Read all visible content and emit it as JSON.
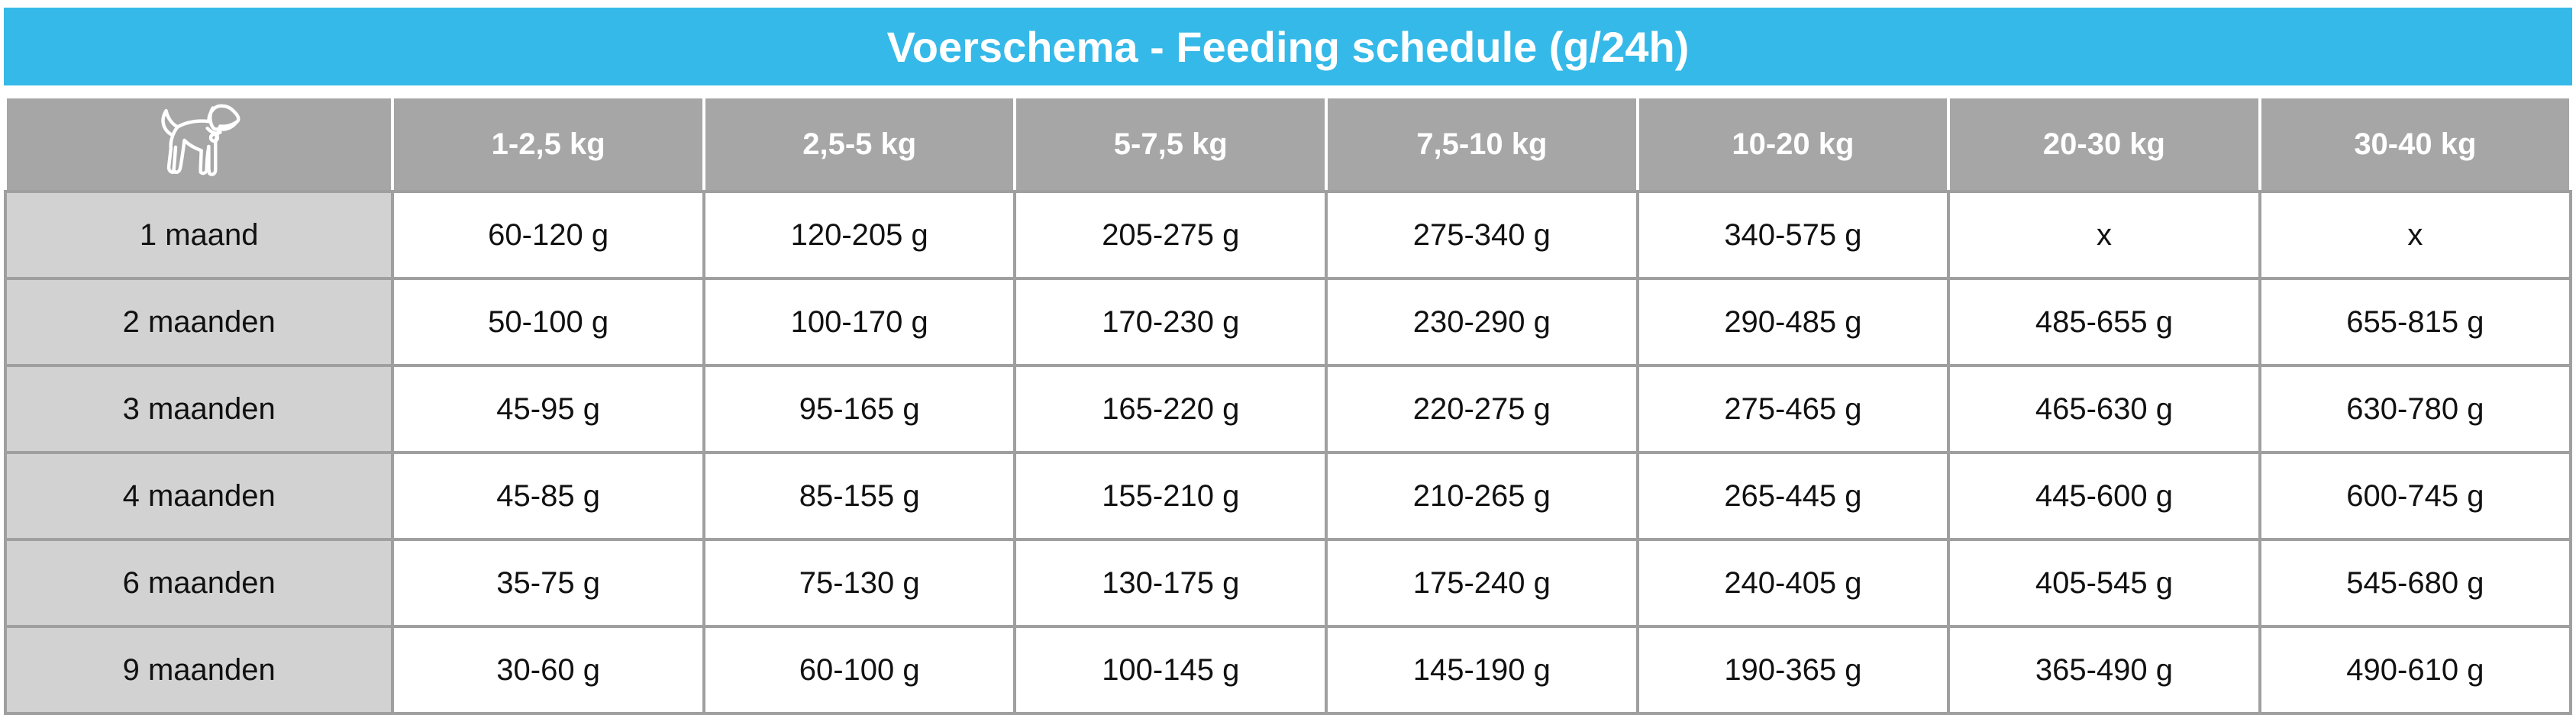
{
  "title": "Voerschema - Feeding schedule (g/24h)",
  "table": {
    "corner_icon": "dog-icon",
    "columns": [
      "1-2,5 kg",
      "2,5-5 kg",
      "5-7,5 kg",
      "7,5-10 kg",
      "10-20 kg",
      "20-30 kg",
      "30-40 kg"
    ],
    "rows": [
      {
        "label": "1 maand",
        "values": [
          "60-120 g",
          "120-205 g",
          "205-275 g",
          "275-340 g",
          "340-575 g",
          "x",
          "x"
        ]
      },
      {
        "label": "2 maanden",
        "values": [
          "50-100 g",
          "100-170 g",
          "170-230 g",
          "230-290 g",
          "290-485 g",
          "485-655 g",
          "655-815 g"
        ]
      },
      {
        "label": "3 maanden",
        "values": [
          "45-95 g",
          "95-165 g",
          "165-220 g",
          "220-275 g",
          "275-465 g",
          "465-630 g",
          "630-780 g"
        ]
      },
      {
        "label": "4 maanden",
        "values": [
          "45-85 g",
          "85-155 g",
          "155-210 g",
          "210-265 g",
          "265-445 g",
          "445-600 g",
          "600-745 g"
        ]
      },
      {
        "label": "6 maanden",
        "values": [
          "35-75 g",
          "75-130 g",
          "130-175 g",
          "175-240 g",
          "240-405 g",
          "405-545 g",
          "545-680 g"
        ]
      },
      {
        "label": "9 maanden",
        "values": [
          "30-60 g",
          "60-100 g",
          "100-145 g",
          "145-190 g",
          "190-365 g",
          "365-490 g",
          "490-610 g"
        ]
      }
    ]
  },
  "colors": {
    "accent": "#35b9e8",
    "header_bg": "#a6a6a6",
    "label_bg": "#d2d2d2",
    "grid_line": "#9f9f9f",
    "header_text": "#ffffff",
    "body_text": "#111111"
  }
}
